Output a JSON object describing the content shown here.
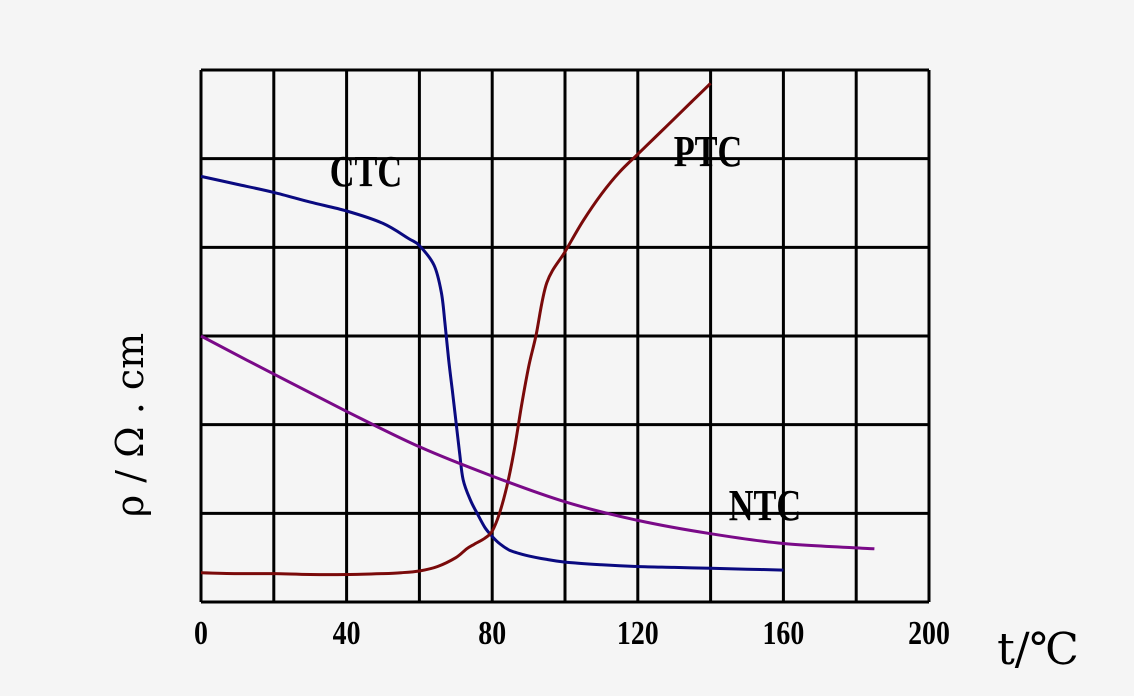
{
  "chart_data": {
    "type": "line",
    "x_ticks": [
      "0",
      "40",
      "80",
      "120",
      "160",
      "200"
    ],
    "xlabel": "t/℃",
    "ylabel": "ρ / Ω . cm",
    "xlim": [
      0,
      200
    ],
    "ylim": [
      0,
      6
    ],
    "grid": true,
    "series": [
      {
        "name": "CTC",
        "color": "#0a0a80",
        "x": [
          0,
          10,
          20,
          30,
          40,
          50,
          57,
          60,
          64,
          66,
          67,
          68,
          69,
          70,
          71,
          72,
          74,
          76,
          78,
          80,
          82,
          85,
          90,
          95,
          100,
          110,
          120,
          130,
          140,
          150,
          160
        ],
        "y": [
          4.8,
          4.71,
          4.62,
          4.51,
          4.41,
          4.27,
          4.1,
          4.02,
          3.8,
          3.5,
          3.15,
          2.75,
          2.4,
          2.05,
          1.7,
          1.38,
          1.15,
          0.99,
          0.84,
          0.74,
          0.66,
          0.58,
          0.52,
          0.48,
          0.45,
          0.42,
          0.4,
          0.39,
          0.38,
          0.37,
          0.36
        ]
      },
      {
        "name": "PTC",
        "color": "#7a0a0a",
        "x": [
          0,
          10,
          20,
          30,
          40,
          50,
          55,
          60,
          65,
          70,
          73,
          75,
          78,
          80,
          82,
          84,
          86,
          88,
          90,
          92,
          95,
          100,
          105,
          110,
          115,
          120,
          125,
          130,
          135,
          140
        ],
        "y": [
          0.33,
          0.32,
          0.32,
          0.31,
          0.31,
          0.32,
          0.33,
          0.35,
          0.4,
          0.5,
          0.6,
          0.65,
          0.72,
          0.8,
          1.0,
          1.3,
          1.7,
          2.2,
          2.65,
          3.0,
          3.6,
          3.95,
          4.3,
          4.6,
          4.85,
          5.05,
          5.25,
          5.45,
          5.65,
          5.85
        ]
      },
      {
        "name": "NTC",
        "color": "#7a0a88",
        "x": [
          0,
          20,
          40,
          60,
          80,
          100,
          120,
          140,
          160,
          185
        ],
        "y": [
          3.0,
          2.57,
          2.15,
          1.75,
          1.42,
          1.13,
          0.92,
          0.77,
          0.66,
          0.6
        ]
      }
    ]
  }
}
